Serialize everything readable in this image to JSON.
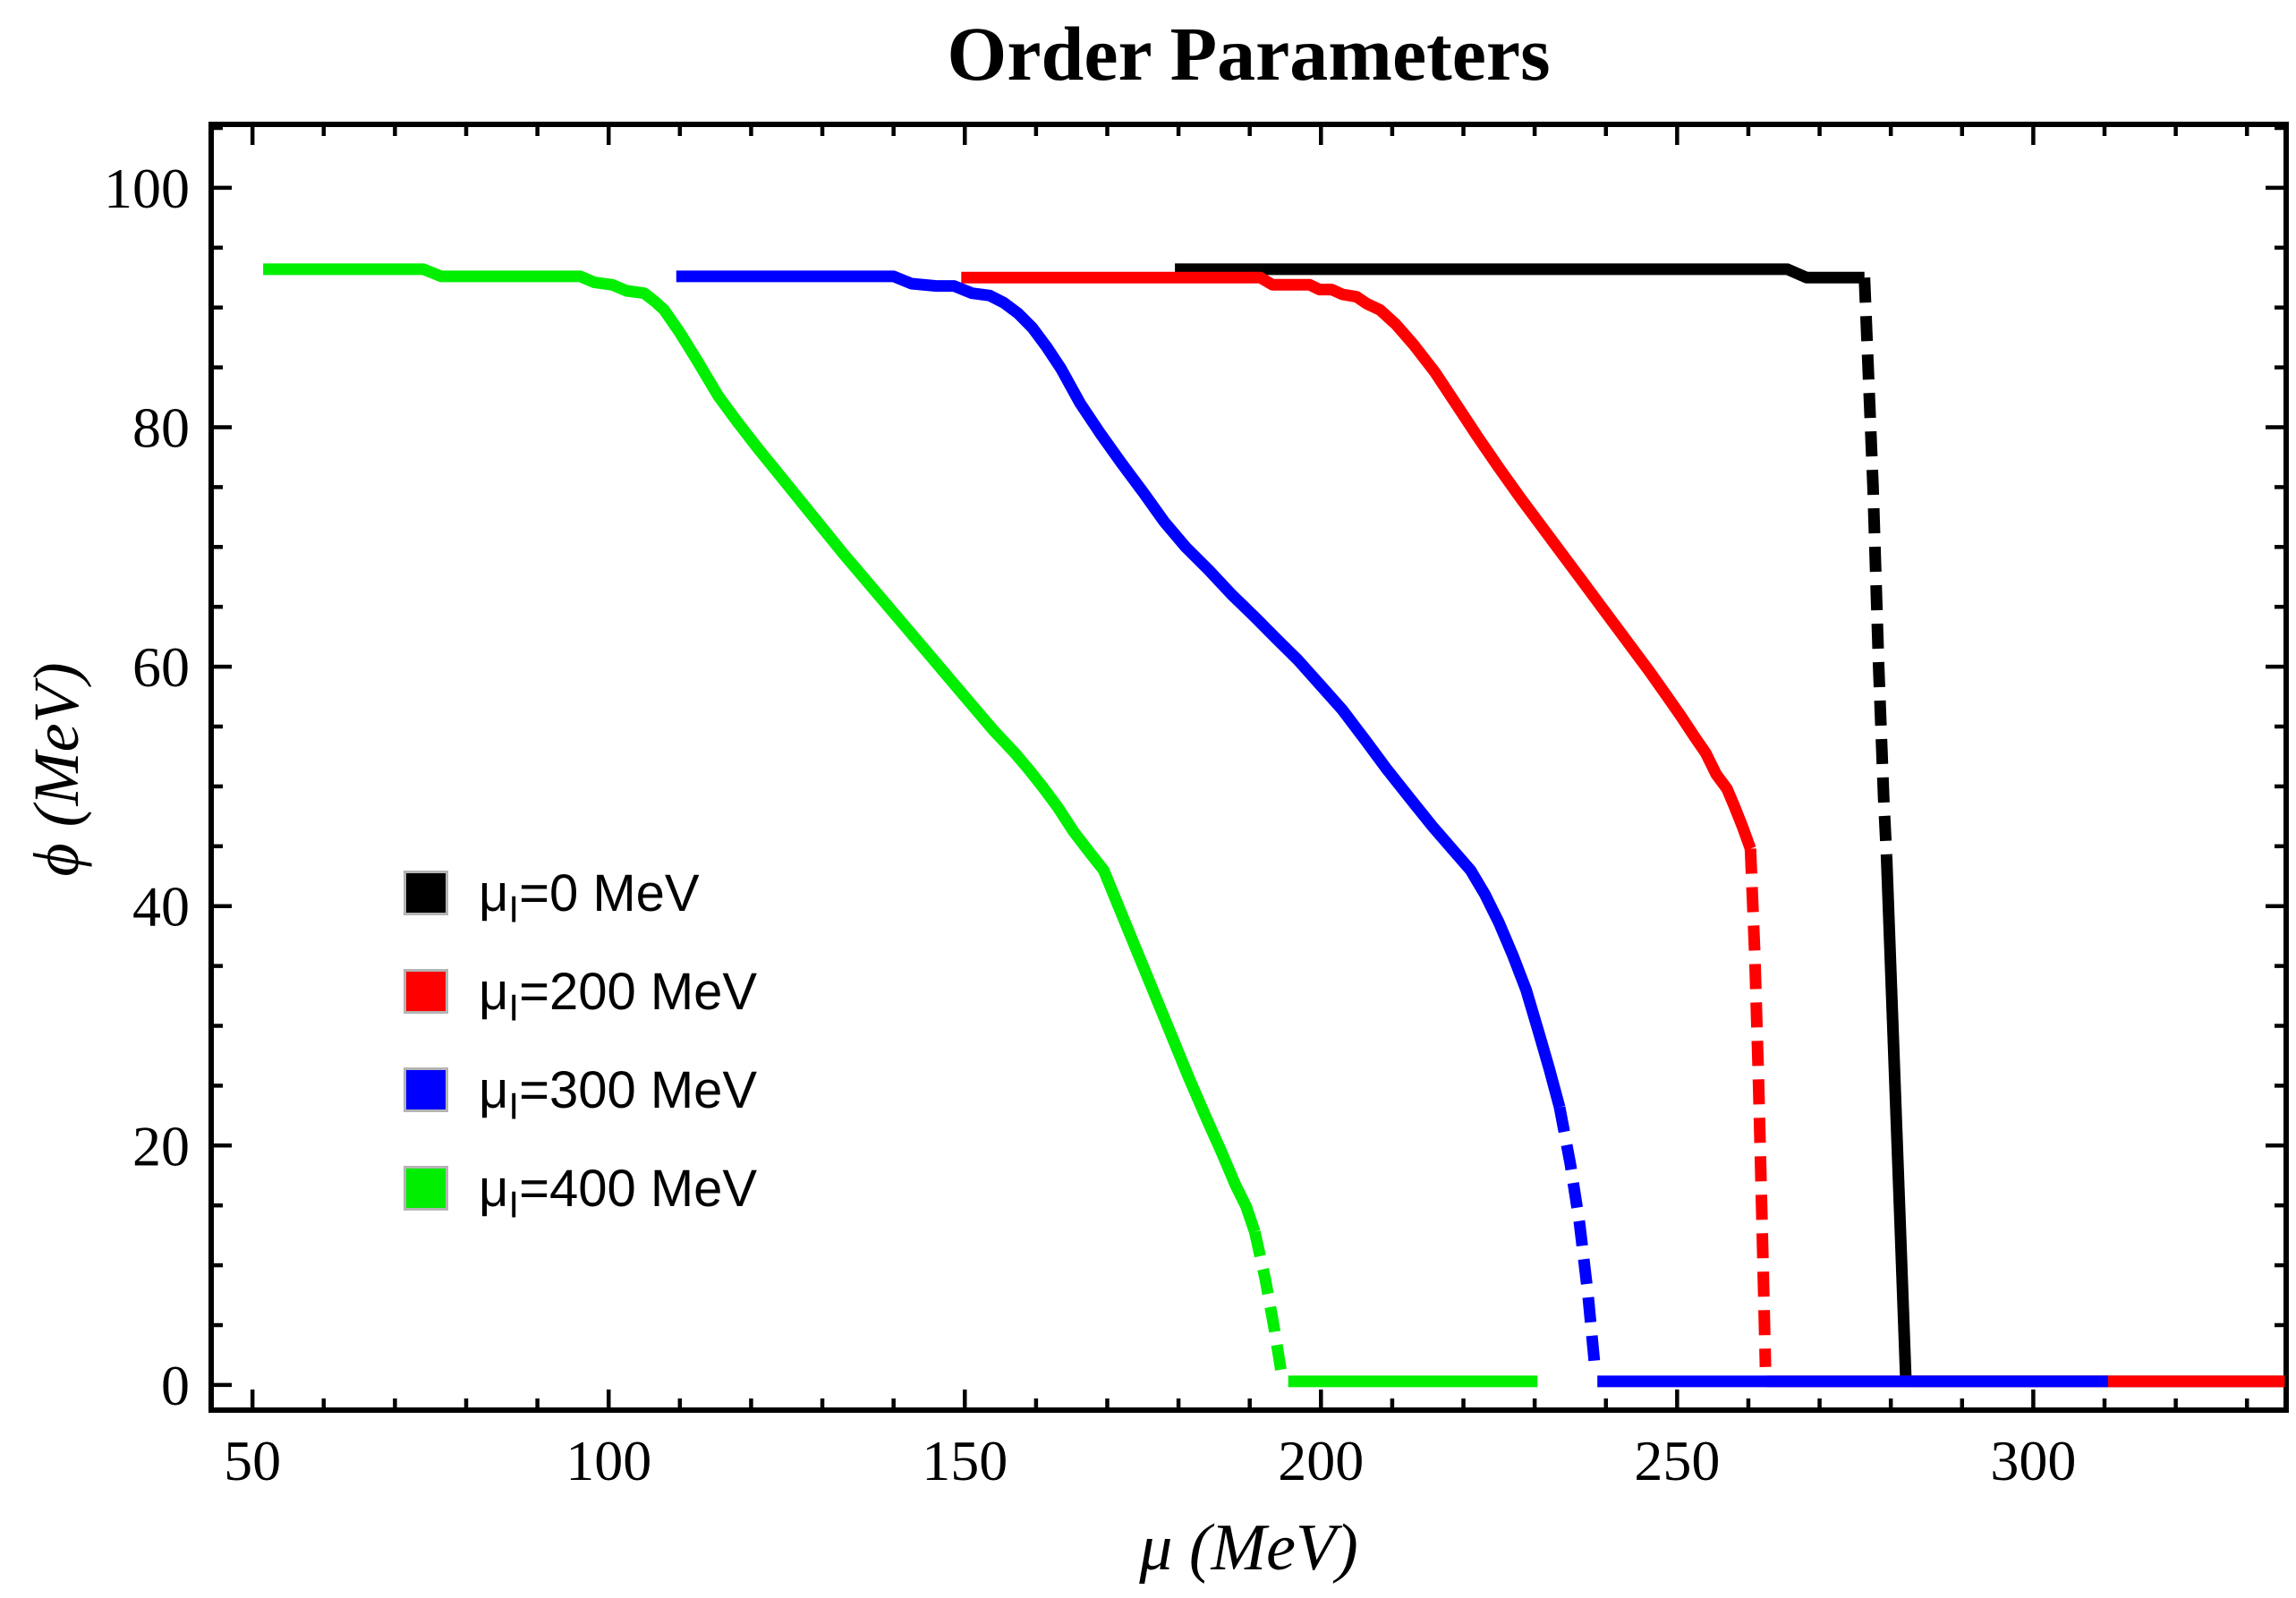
{
  "chart_data": {
    "type": "line",
    "title": "Order Parameters",
    "xlabel": "μ (MeV)",
    "ylabel": "ϕ (MeV)",
    "xlim": [
      44.2,
      335.5
    ],
    "ylim": [
      -2.1,
      105.3
    ],
    "grid": false,
    "frame": true,
    "legend_position": "inside-left-middle",
    "x_major_ticks": [
      50,
      100,
      150,
      200,
      250,
      300
    ],
    "x_tick_labels": [
      "50",
      "100",
      "150",
      "200",
      "250",
      "300"
    ],
    "x_minor_tick_step": 10,
    "y_major_ticks": [
      0,
      20,
      40,
      60,
      80,
      100
    ],
    "y_tick_labels": [
      "0",
      "20",
      "40",
      "60",
      "80",
      "100"
    ],
    "y_minor_tick_step": 5,
    "axis_color": "#000000",
    "series": [
      {
        "name": "μI=0 MeV",
        "legend": {
          "prefix": "μ",
          "subscript": "I",
          "suffix": "=0 MeV"
        },
        "color": "#000000",
        "line_width": 13,
        "segments": [
          {
            "style": "solid",
            "points": [
              [
                179.5,
                93.2
              ],
              [
                265.5,
                93.2
              ],
              [
                268.2,
                92.5
              ],
              [
                276.3,
                92.5
              ]
            ]
          },
          {
            "style": "dashed",
            "points": [
              [
                276.3,
                92.5
              ],
              [
                277.5,
                75
              ],
              [
                278.3,
                60
              ],
              [
                279.0,
                49
              ],
              [
                279.4,
                44.2
              ]
            ]
          },
          {
            "style": "solid",
            "points": [
              [
                279.4,
                44.2
              ],
              [
                280.4,
                28
              ],
              [
                281.4,
                12
              ],
              [
                282.1,
                0.6
              ]
            ]
          },
          {
            "style": "solid",
            "points": [
              [
                282.4,
                0.3
              ],
              [
                335.3,
                0.3
              ]
            ]
          }
        ]
      },
      {
        "name": "μI=200 MeV",
        "legend": {
          "prefix": "μ",
          "subscript": "I",
          "suffix": "=200 MeV"
        },
        "color": "#ff0000",
        "line_width": 13,
        "segments": [
          {
            "style": "solid",
            "points": [
              [
                149.5,
                92.5
              ],
              [
                191.5,
                92.5
              ],
              [
                193.2,
                91.9
              ],
              [
                198.4,
                91.9
              ],
              [
                199.8,
                91.5
              ],
              [
                201.5,
                91.5
              ],
              [
                203,
                91.1
              ],
              [
                205,
                90.9
              ],
              [
                206.5,
                90.3
              ],
              [
                208.3,
                89.8
              ],
              [
                210.5,
                88.6
              ],
              [
                213,
                86.9
              ],
              [
                216,
                84.6
              ],
              [
                219,
                81.9
              ],
              [
                222,
                79.2
              ],
              [
                225,
                76.6
              ],
              [
                228,
                74.1
              ],
              [
                231,
                71.7
              ],
              [
                234,
                69.3
              ],
              [
                237,
                66.9
              ],
              [
                240,
                64.5
              ],
              [
                243,
                62.1
              ],
              [
                246,
                59.7
              ],
              [
                248.5,
                57.6
              ],
              [
                250.5,
                55.9
              ],
              [
                252.5,
                54.1
              ],
              [
                254,
                52.8
              ],
              [
                255.5,
                51.0
              ],
              [
                257,
                49.8
              ],
              [
                258,
                48.4
              ],
              [
                259.2,
                46.6
              ],
              [
                260.3,
                44.8
              ]
            ]
          },
          {
            "style": "dashed",
            "points": [
              [
                260.3,
                44.8
              ],
              [
                260.9,
                36
              ],
              [
                261.4,
                26
              ],
              [
                261.9,
                14
              ],
              [
                262.4,
                1.5
              ]
            ]
          },
          {
            "style": "solid",
            "points": [
              [
                262.6,
                0.3
              ],
              [
                335.3,
                0.3
              ]
            ]
          }
        ]
      },
      {
        "name": "μI=300 MeV",
        "legend": {
          "prefix": "μ",
          "subscript": "I",
          "suffix": "=300 MeV"
        },
        "color": "#0000ff",
        "line_width": 13,
        "segments": [
          {
            "style": "solid",
            "points": [
              [
                109.5,
                92.6
              ],
              [
                140,
                92.6
              ],
              [
                142.5,
                92.0
              ],
              [
                146,
                91.8
              ],
              [
                148.5,
                91.8
              ],
              [
                151,
                91.2
              ],
              [
                153.5,
                91.0
              ],
              [
                155.5,
                90.4
              ],
              [
                157.5,
                89.5
              ],
              [
                159.5,
                88.3
              ],
              [
                161.5,
                86.7
              ],
              [
                163.5,
                84.9
              ],
              [
                166.2,
                82.0
              ],
              [
                169,
                79.5
              ],
              [
                172,
                77.0
              ],
              [
                175,
                74.6
              ],
              [
                178,
                72.1
              ],
              [
                181,
                70.0
              ],
              [
                184.2,
                68.1
              ],
              [
                187.5,
                66.0
              ],
              [
                190.8,
                64.1
              ],
              [
                193.8,
                62.3
              ],
              [
                196.7,
                60.6
              ],
              [
                200,
                58.4
              ],
              [
                203,
                56.4
              ],
              [
                206.3,
                53.8
              ],
              [
                209.3,
                51.4
              ],
              [
                212.5,
                49.0
              ],
              [
                215.6,
                46.7
              ],
              [
                218.5,
                44.7
              ],
              [
                221,
                43.0
              ],
              [
                223,
                41.0
              ],
              [
                225,
                38.6
              ],
              [
                227,
                35.8
              ],
              [
                228.8,
                33.0
              ],
              [
                230.5,
                29.6
              ],
              [
                232,
                26.5
              ],
              [
                233.5,
                23.2
              ]
            ]
          },
          {
            "style": "dashed",
            "points": [
              [
                233.5,
                23.2
              ],
              [
                235,
                18.5
              ],
              [
                236.3,
                13.5
              ],
              [
                237.5,
                7.5
              ],
              [
                238.5,
                1.2
              ]
            ]
          },
          {
            "style": "solid",
            "points": [
              [
                238.8,
                0.3
              ],
              [
                310.5,
                0.3
              ]
            ]
          }
        ]
      },
      {
        "name": "μI=400 MeV",
        "legend": {
          "prefix": "μ",
          "subscript": "I",
          "suffix": "=400 MeV"
        },
        "color": "#00ee00",
        "line_width": 13,
        "segments": [
          {
            "style": "solid",
            "points": [
              [
                51.5,
                93.2
              ],
              [
                74,
                93.2
              ],
              [
                76.5,
                92.6
              ],
              [
                96,
                92.6
              ],
              [
                98,
                92.1
              ],
              [
                100.5,
                91.9
              ],
              [
                102.5,
                91.4
              ],
              [
                105,
                91.2
              ],
              [
                106.5,
                90.5
              ],
              [
                107.8,
                89.8
              ],
              [
                110,
                87.9
              ],
              [
                112.5,
                85.5
              ],
              [
                115.4,
                82.6
              ],
              [
                118,
                80.5
              ],
              [
                121,
                78.2
              ],
              [
                124,
                76.0
              ],
              [
                127,
                73.8
              ],
              [
                130,
                71.6
              ],
              [
                133,
                69.4
              ],
              [
                136,
                67.3
              ],
              [
                139,
                65.2
              ],
              [
                142,
                63.1
              ],
              [
                145,
                61.0
              ],
              [
                148,
                58.9
              ],
              [
                151,
                56.8
              ],
              [
                154,
                54.7
              ],
              [
                157,
                52.8
              ],
              [
                159,
                51.4
              ],
              [
                161,
                49.9
              ],
              [
                163,
                48.3
              ],
              [
                165.3,
                46.2
              ],
              [
                167.5,
                44.5
              ],
              [
                169.5,
                43.0
              ],
              [
                171.5,
                40.1
              ],
              [
                173.5,
                37.2
              ],
              [
                175.5,
                34.3
              ],
              [
                177.5,
                31.4
              ],
              [
                179.5,
                28.5
              ],
              [
                181.5,
                25.6
              ],
              [
                183.9,
                22.3
              ],
              [
                186,
                19.5
              ],
              [
                188,
                16.7
              ],
              [
                189.5,
                14.9
              ],
              [
                190.7,
                12.8
              ]
            ]
          },
          {
            "style": "dashed",
            "points": [
              [
                190.7,
                12.8
              ],
              [
                192.2,
                8.8
              ],
              [
                193.5,
                4.5
              ],
              [
                194.5,
                0.8
              ]
            ]
          },
          {
            "style": "solid",
            "points": [
              [
                195.4,
                0.3
              ],
              [
                230.4,
                0.3
              ]
            ]
          }
        ]
      }
    ]
  }
}
